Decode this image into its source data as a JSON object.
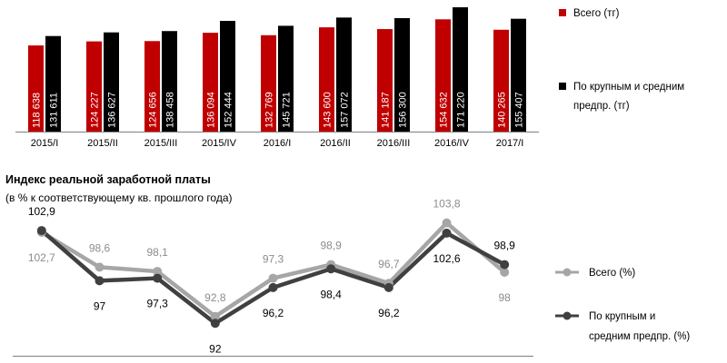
{
  "chart_data": [
    {
      "type": "bar",
      "categories": [
        "2015/I",
        "2015/II",
        "2015/III",
        "2015/IV",
        "2016/I",
        "2016/II",
        "2016/III",
        "2016/IV",
        "2017/I"
      ],
      "series": [
        {
          "name": "Всего (тг)",
          "color": "#c00000",
          "values": [
            118638,
            124227,
            124656,
            136094,
            132769,
            143600,
            141187,
            154632,
            140265
          ],
          "labels": [
            "118 638",
            "124 227",
            "124 656",
            "136 094",
            "132 769",
            "143 600",
            "141 187",
            "154 632",
            "140 265"
          ]
        },
        {
          "name": "По крупным и средним предпр. (тг)",
          "color": "#000000",
          "values": [
            131611,
            136627,
            138458,
            152444,
            145721,
            157072,
            156300,
            171220,
            155407
          ],
          "labels": [
            "131 611",
            "136 627",
            "138 458",
            "152 444",
            "145 721",
            "157 072",
            "156 300",
            "171 220",
            "155 407"
          ]
        }
      ],
      "ylim": [
        0,
        175000
      ],
      "legend": "right",
      "legend_lines": [
        [
          "Всего (тг)"
        ],
        [
          "По крупным и средним",
          "предпр. (тг)"
        ]
      ]
    },
    {
      "type": "line",
      "title": "Индекс реальной заработной платы",
      "subtitle": "(в % к соответствующему  кв. прошлого года)",
      "categories": [
        "2015/I",
        "2015/II",
        "2015/III",
        "2015/IV",
        "2016/I",
        "2016/II",
        "2016/III",
        "2016/IV",
        "2017/I"
      ],
      "series": [
        {
          "name": "Всего (%)",
          "color": "#a6a6a6",
          "values": [
            102.7,
            98.6,
            98.1,
            92.8,
            97.3,
            98.9,
            96.7,
            103.8,
            98
          ]
        },
        {
          "name": "По крупным и средним предпр. (%)",
          "color": "#404040",
          "values": [
            102.9,
            97,
            97.3,
            92,
            96.2,
            98.4,
            96.2,
            102.6,
            98.9
          ]
        }
      ],
      "ylim": [
        90,
        106
      ],
      "legend": "right",
      "legend_lines": [
        [
          "Всего (%)"
        ],
        [
          "По крупным и",
          "средним предпр. (%)"
        ]
      ]
    }
  ]
}
